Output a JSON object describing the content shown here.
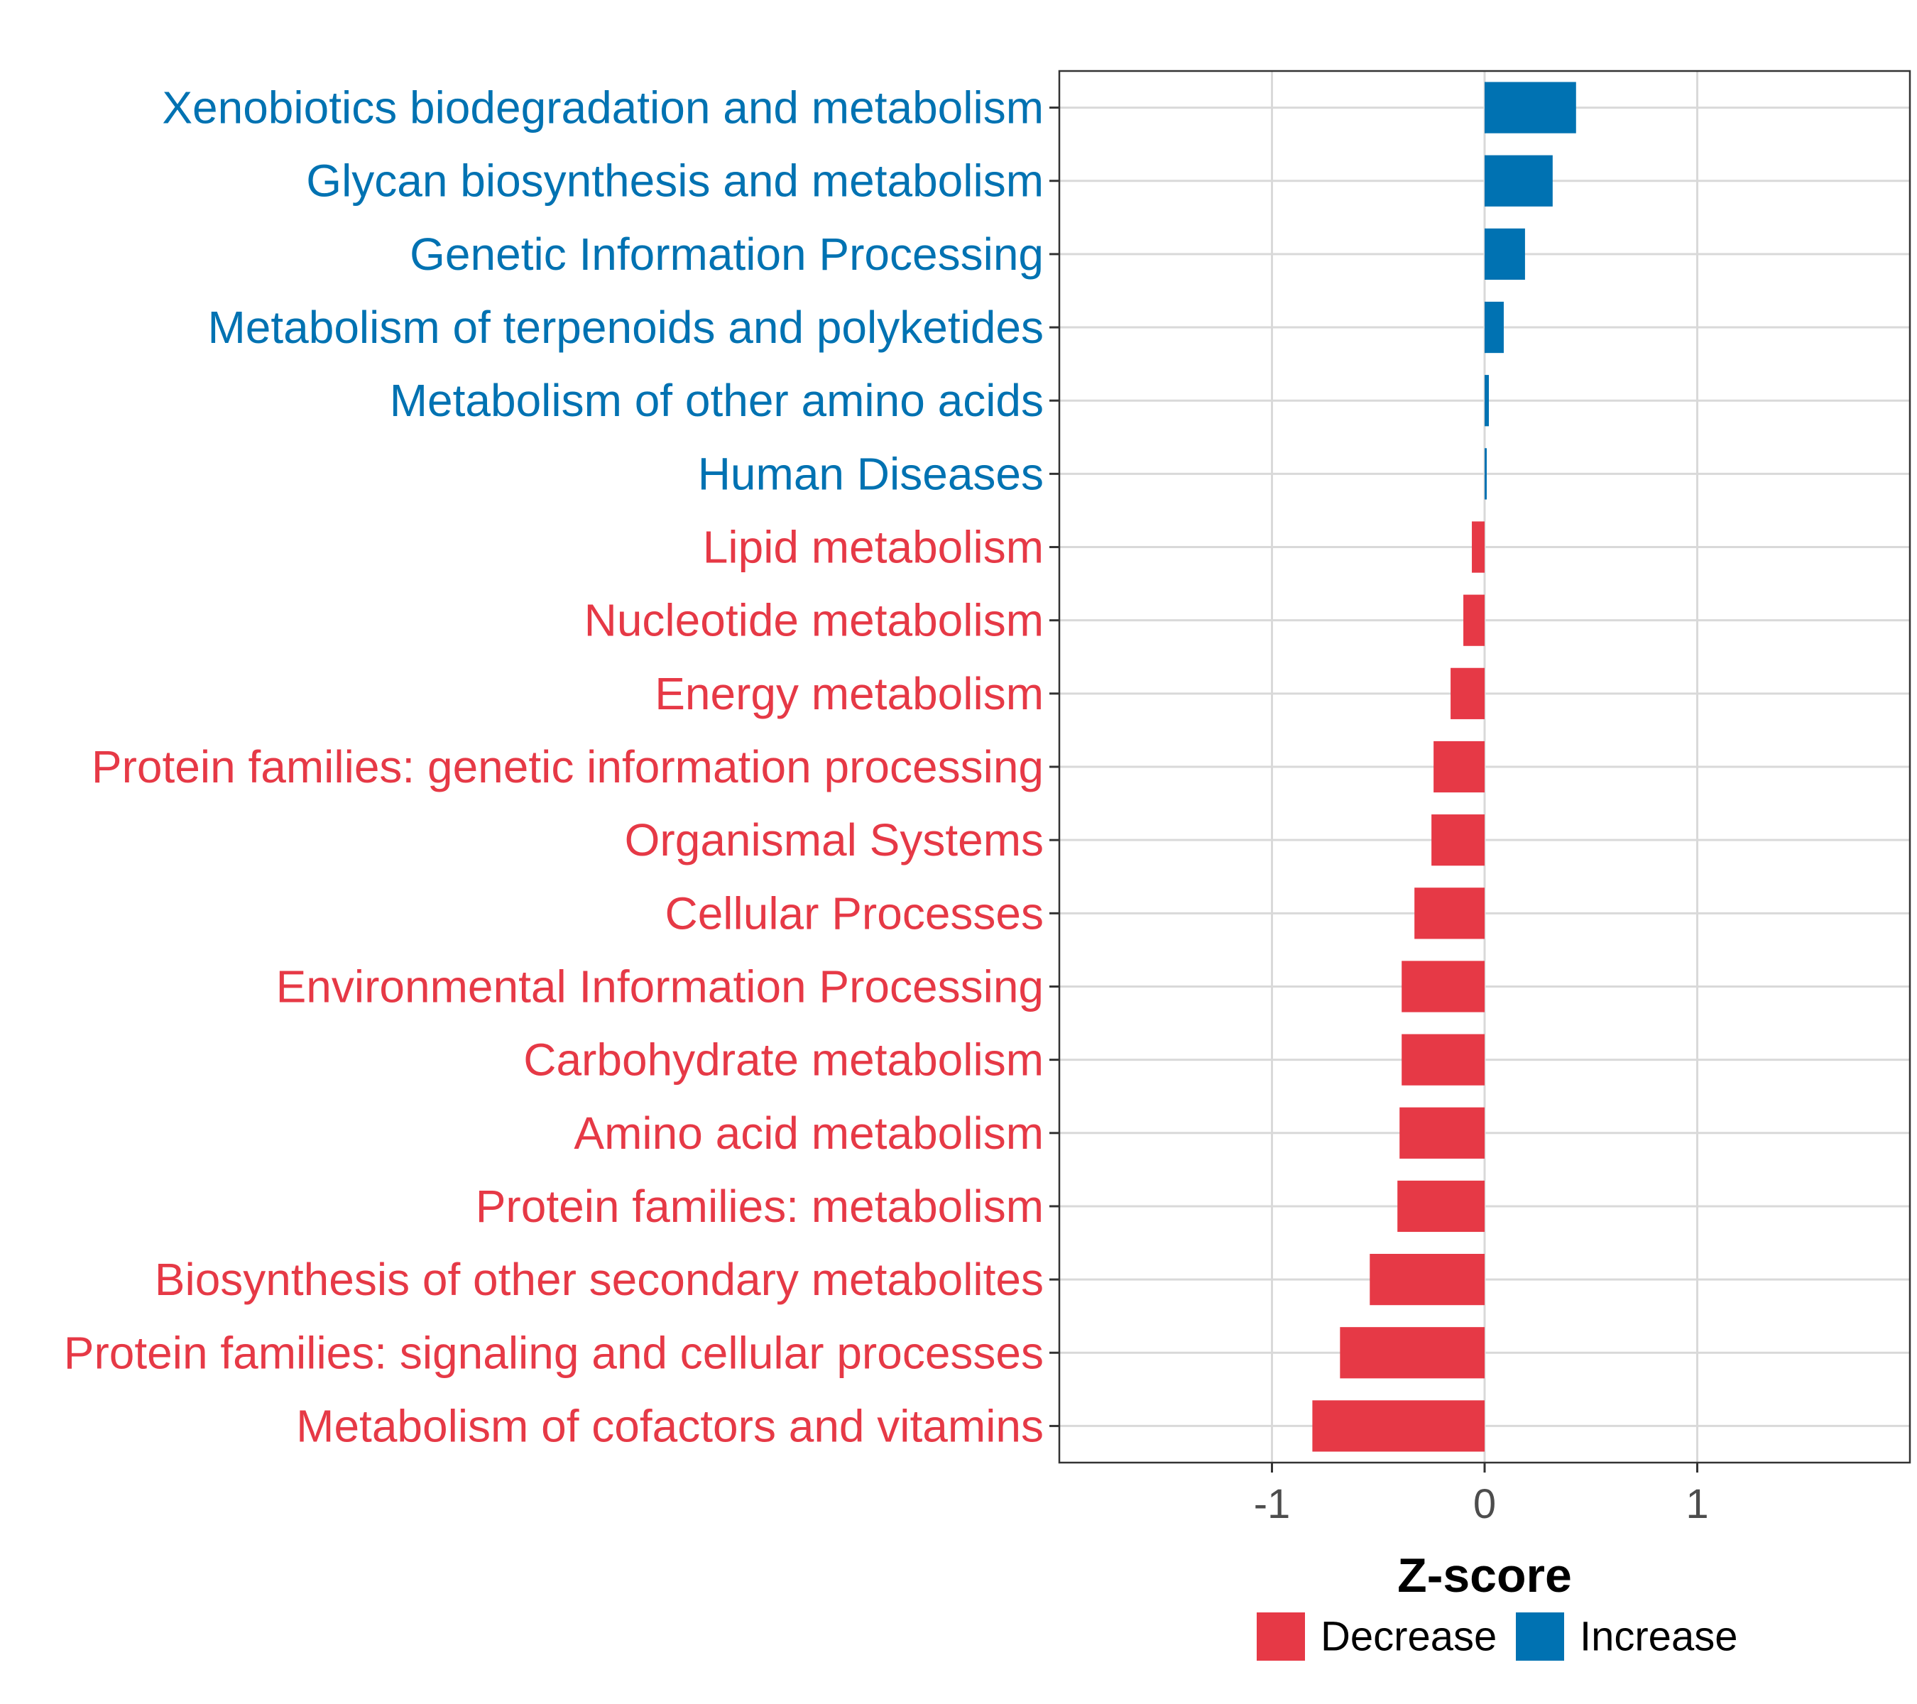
{
  "chart_data": {
    "type": "bar",
    "orientation": "horizontal",
    "xlabel": "Z-score",
    "ylabel": "",
    "xlim": [
      -2.0,
      2.0
    ],
    "xticks": [
      -1,
      0,
      1
    ],
    "xtick_labels": [
      "-1",
      "0",
      "1"
    ],
    "grid": true,
    "legend_position": "bottom",
    "colors": {
      "Increase": "#0072B2",
      "Decrease": "#E63946"
    },
    "legend": [
      {
        "name": "Decrease",
        "color": "#E63946"
      },
      {
        "name": "Increase",
        "color": "#0072B2"
      }
    ],
    "categories": [
      "Xenobiotics biodegradation and metabolism",
      "Glycan biosynthesis and metabolism",
      "Genetic Information Processing",
      "Metabolism of terpenoids and polyketides",
      "Metabolism of other amino acids",
      "Human Diseases",
      "Lipid metabolism",
      "Nucleotide metabolism",
      "Energy metabolism",
      "Protein families: genetic information processing",
      "Organismal Systems",
      "Cellular Processes",
      "Environmental Information Processing",
      "Carbohydrate metabolism",
      "Amino acid metabolism",
      "Protein families: metabolism",
      "Biosynthesis of other secondary metabolites",
      "Protein families: signaling and cellular processes",
      "Metabolism of cofactors and vitamins"
    ],
    "values": [
      0.43,
      0.32,
      0.19,
      0.09,
      0.02,
      0.01,
      -0.06,
      -0.1,
      -0.16,
      -0.24,
      -0.25,
      -0.33,
      -0.39,
      -0.39,
      -0.4,
      -0.41,
      -0.54,
      -0.68,
      -0.81
    ],
    "direction": [
      "Increase",
      "Increase",
      "Increase",
      "Increase",
      "Increase",
      "Increase",
      "Decrease",
      "Decrease",
      "Decrease",
      "Decrease",
      "Decrease",
      "Decrease",
      "Decrease",
      "Decrease",
      "Decrease",
      "Decrease",
      "Decrease",
      "Decrease",
      "Decrease"
    ]
  }
}
